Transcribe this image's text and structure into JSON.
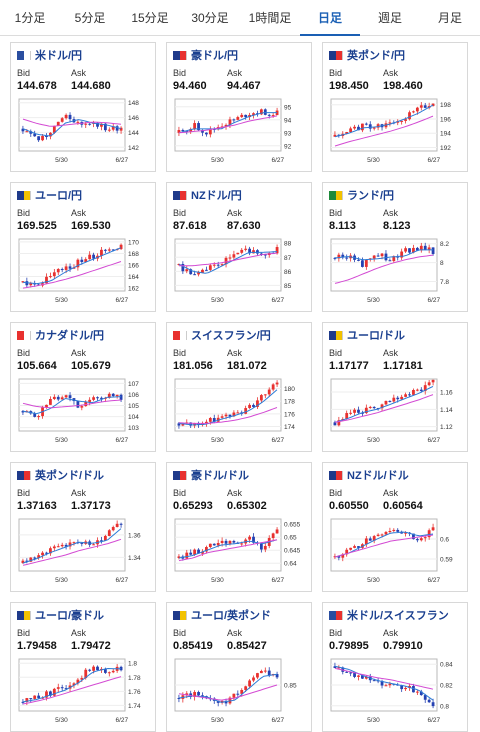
{
  "tabs": [
    {
      "label": "1分足",
      "active": false
    },
    {
      "label": "5分足",
      "active": false
    },
    {
      "label": "15分足",
      "active": false
    },
    {
      "label": "30分足",
      "active": false
    },
    {
      "label": "1時間足",
      "active": false
    },
    {
      "label": "日足",
      "active": true
    },
    {
      "label": "週足",
      "active": false
    },
    {
      "label": "月足",
      "active": false
    }
  ],
  "bid_label": "Bid",
  "ask_label": "Ask",
  "x_labels": [
    "5/30",
    "6/27"
  ],
  "colors": {
    "up": "#e8312f",
    "down": "#2541b2",
    "ma_short": "#2b7bd6",
    "ma_long": "#d34ad3",
    "accent": "#1a5fb4"
  },
  "cards": [
    {
      "name": "米ドル/円",
      "flag": [
        "#2a4ea0",
        "#ffffff"
      ],
      "bid": "144.678",
      "ask": "144.680",
      "yticks": [
        "148",
        "146",
        "144",
        "142"
      ],
      "ylim": [
        141.5,
        148.5
      ],
      "trend": [
        144.5,
        143.0,
        144.0,
        146.5,
        145.0,
        145.5,
        144.5,
        144.5
      ],
      "ma_long": [
        145.8,
        145.2,
        144.8,
        145.0,
        145.2,
        145.4,
        145.3,
        145.1
      ]
    },
    {
      "name": "豪ドル/円",
      "flag": [
        "#1f3a8a",
        "#e8312f"
      ],
      "bid": "94.460",
      "ask": "94.467",
      "yticks": [
        "95",
        "94",
        "93",
        "92"
      ],
      "ylim": [
        91.6,
        95.6
      ],
      "trend": [
        93.0,
        93.6,
        93.0,
        93.6,
        94.0,
        94.5,
        94.6,
        94.5
      ],
      "ma_long": [
        93.0,
        93.1,
        93.2,
        93.4,
        93.6,
        93.9,
        94.1,
        94.3
      ]
    },
    {
      "name": "英ポンド/円",
      "flag": [
        "#1f3a8a",
        "#e8312f"
      ],
      "bid": "198.450",
      "ask": "198.460",
      "yticks": [
        "198",
        "196",
        "194",
        "192"
      ],
      "ylim": [
        191.5,
        198.8
      ],
      "trend": [
        193.5,
        194.5,
        195.0,
        194.8,
        195.8,
        196.2,
        197.5,
        198.4
      ],
      "ma_long": [
        192.2,
        192.8,
        193.3,
        193.8,
        194.3,
        194.9,
        195.6,
        196.4
      ]
    },
    {
      "name": "ユーロ/円",
      "flag": [
        "#1f3a8a",
        "#f2c200"
      ],
      "bid": "169.525",
      "ask": "169.530",
      "yticks": [
        "170",
        "168",
        "166",
        "164",
        "162"
      ],
      "ylim": [
        161.5,
        170.5
      ],
      "trend": [
        163.0,
        162.5,
        164.0,
        165.5,
        166.5,
        167.5,
        168.5,
        169.5
      ],
      "ma_long": [
        162.0,
        162.4,
        162.9,
        163.5,
        164.2,
        165.0,
        165.8,
        166.6
      ]
    },
    {
      "name": "NZドル/円",
      "flag": [
        "#1f3a8a",
        "#e8312f"
      ],
      "bid": "87.618",
      "ask": "87.630",
      "yticks": [
        "88",
        "87",
        "86",
        "85"
      ],
      "ylim": [
        84.6,
        88.3
      ],
      "trend": [
        86.5,
        85.5,
        86.2,
        86.5,
        87.2,
        87.5,
        87.2,
        87.6
      ],
      "ma_long": [
        86.4,
        86.4,
        86.5,
        86.6,
        86.8,
        87.0,
        87.2,
        87.3
      ]
    },
    {
      "name": "ランド/円",
      "flag": [
        "#1d8a3a",
        "#f2c200"
      ],
      "bid": "8.113",
      "ask": "8.123",
      "yticks": [
        "8.2",
        "8",
        "7.8"
      ],
      "ylim": [
        7.7,
        8.25
      ],
      "trend": [
        8.05,
        8.08,
        7.98,
        8.1,
        8.02,
        8.12,
        8.15,
        8.12
      ],
      "ma_long": [
        7.78,
        7.82,
        7.88,
        7.94,
        7.99,
        8.03,
        8.06,
        8.08
      ]
    },
    {
      "name": "カナダドル/円",
      "flag": [
        "#e8312f",
        "#ffffff"
      ],
      "bid": "105.664",
      "ask": "105.679",
      "yticks": [
        "107",
        "106",
        "105",
        "104",
        "103"
      ],
      "ylim": [
        102.7,
        107.4
      ],
      "trend": [
        104.5,
        104.0,
        105.5,
        105.8,
        105.0,
        105.5,
        106.0,
        105.6
      ],
      "ma_long": [
        105.2,
        104.9,
        104.8,
        104.9,
        105.0,
        105.2,
        105.4,
        105.5
      ]
    },
    {
      "name": "スイスフラン/円",
      "flag": [
        "#e8312f",
        "#ffffff"
      ],
      "bid": "181.056",
      "ask": "181.072",
      "yticks": [
        "180",
        "178",
        "176",
        "174"
      ],
      "ylim": [
        173.3,
        181.5
      ],
      "trend": [
        174.5,
        174.0,
        174.8,
        175.5,
        176.0,
        177.0,
        178.8,
        180.8
      ],
      "ma_long": [
        174.6,
        174.5,
        174.5,
        174.7,
        175.0,
        175.5,
        176.2,
        177.0
      ]
    },
    {
      "name": "ユーロ/ドル",
      "flag": [
        "#1f3a8a",
        "#f2c200"
      ],
      "bid": "1.17177",
      "ask": "1.17181",
      "yticks": [
        "1.16",
        "1.14",
        "1.12"
      ],
      "ylim": [
        1.115,
        1.175
      ],
      "trend": [
        1.125,
        1.135,
        1.138,
        1.142,
        1.15,
        1.155,
        1.162,
        1.171
      ],
      "ma_long": [
        1.125,
        1.128,
        1.132,
        1.136,
        1.141,
        1.146,
        1.151,
        1.157
      ]
    },
    {
      "name": "英ポンド/ドル",
      "flag": [
        "#1f3a8a",
        "#e8312f"
      ],
      "bid": "1.37163",
      "ask": "1.37173",
      "yticks": [
        "1.36",
        "1.34"
      ],
      "ylim": [
        1.328,
        1.374
      ],
      "trend": [
        1.335,
        1.343,
        1.346,
        1.352,
        1.355,
        1.35,
        1.36,
        1.371
      ],
      "ma_long": [
        1.333,
        1.336,
        1.339,
        1.342,
        1.346,
        1.349,
        1.352,
        1.356
      ]
    },
    {
      "name": "豪ドル/ドル",
      "flag": [
        "#1f3a8a",
        "#e8312f"
      ],
      "bid": "0.65293",
      "ask": "0.65302",
      "yticks": [
        "0.655",
        "0.65",
        "0.645",
        "0.64"
      ],
      "ylim": [
        0.637,
        0.657
      ],
      "trend": [
        0.642,
        0.644,
        0.646,
        0.648,
        0.647,
        0.65,
        0.645,
        0.653
      ],
      "ma_long": [
        0.641,
        0.642,
        0.644,
        0.645,
        0.646,
        0.647,
        0.648,
        0.649
      ]
    },
    {
      "name": "NZドル/ドル",
      "flag": [
        "#1f3a8a",
        "#e8312f"
      ],
      "bid": "0.60550",
      "ask": "0.60564",
      "yticks": [
        "0.6",
        "0.59"
      ],
      "ylim": [
        0.584,
        0.61
      ],
      "trend": [
        0.591,
        0.595,
        0.598,
        0.602,
        0.604,
        0.603,
        0.6,
        0.605
      ],
      "ma_long": [
        0.591,
        0.593,
        0.595,
        0.597,
        0.599,
        0.6,
        0.601,
        0.602
      ]
    },
    {
      "name": "ユーロ/豪ドル",
      "flag": [
        "#1f3a8a",
        "#f2c200"
      ],
      "bid": "1.79458",
      "ask": "1.79472",
      "yticks": [
        "1.8",
        "1.78",
        "1.76",
        "1.74"
      ],
      "ylim": [
        1.732,
        1.806
      ],
      "trend": [
        1.745,
        1.752,
        1.758,
        1.765,
        1.78,
        1.795,
        1.79,
        1.794
      ],
      "ma_long": [
        1.742,
        1.746,
        1.751,
        1.757,
        1.763,
        1.769,
        1.775,
        1.781
      ]
    },
    {
      "name": "ユーロ/英ポンド",
      "flag": [
        "#1f3a8a",
        "#f2c200"
      ],
      "bid": "0.85419",
      "ask": "0.85427",
      "yticks": [
        "0.85"
      ],
      "ylim": [
        0.838,
        0.862
      ],
      "trend": [
        0.844,
        0.846,
        0.843,
        0.841,
        0.845,
        0.852,
        0.856,
        0.854
      ],
      "ma_long": [
        0.846,
        0.845,
        0.844,
        0.843,
        0.844,
        0.846,
        0.848,
        0.85
      ]
    },
    {
      "name": "米ドル/スイスフラン",
      "flag": [
        "#2a4ea0",
        "#e8312f"
      ],
      "bid": "0.79895",
      "ask": "0.79910",
      "yticks": [
        "0.84",
        "0.82",
        "0.8"
      ],
      "ylim": [
        0.795,
        0.845
      ],
      "trend": [
        0.838,
        0.832,
        0.826,
        0.823,
        0.82,
        0.818,
        0.812,
        0.799
      ],
      "ma_long": [
        0.836,
        0.833,
        0.83,
        0.827,
        0.825,
        0.822,
        0.819,
        0.816
      ]
    }
  ]
}
